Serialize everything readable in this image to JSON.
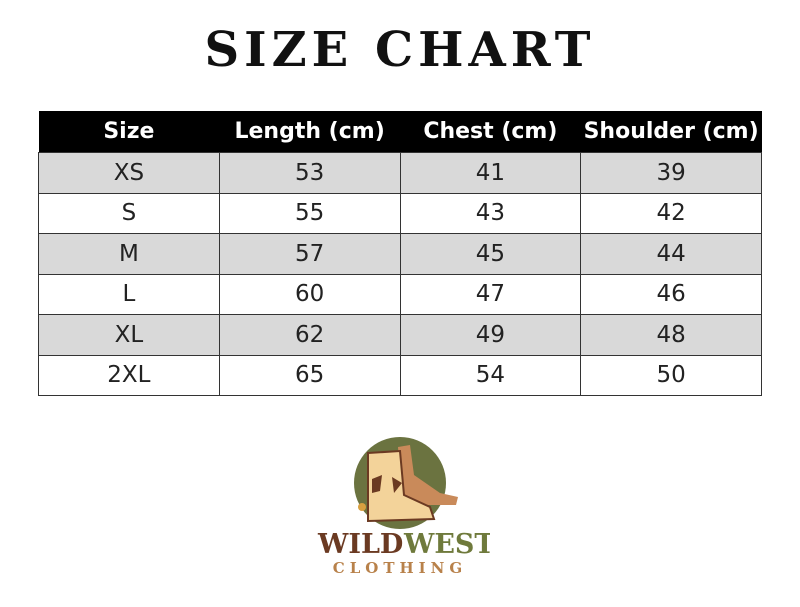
{
  "title": "SIZE CHART",
  "table": {
    "headers": [
      "Size",
      "Length (cm)",
      "Chest (cm)",
      "Shoulder (cm)"
    ],
    "rows": [
      [
        "XS",
        "53",
        "41",
        "39"
      ],
      [
        "S",
        "55",
        "43",
        "42"
      ],
      [
        "M",
        "57",
        "45",
        "44"
      ],
      [
        "L",
        "60",
        "47",
        "46"
      ],
      [
        "XL",
        "62",
        "49",
        "48"
      ],
      [
        "2XL",
        "65",
        "54",
        "50"
      ]
    ]
  },
  "logo": {
    "word1": "WILD",
    "word2": "WEST",
    "tagline": "CLOTHING",
    "colors": {
      "wild": "#6b3a22",
      "west": "#6f7a3c",
      "tagline": "#b8814a",
      "circle": "#6b7340"
    }
  }
}
